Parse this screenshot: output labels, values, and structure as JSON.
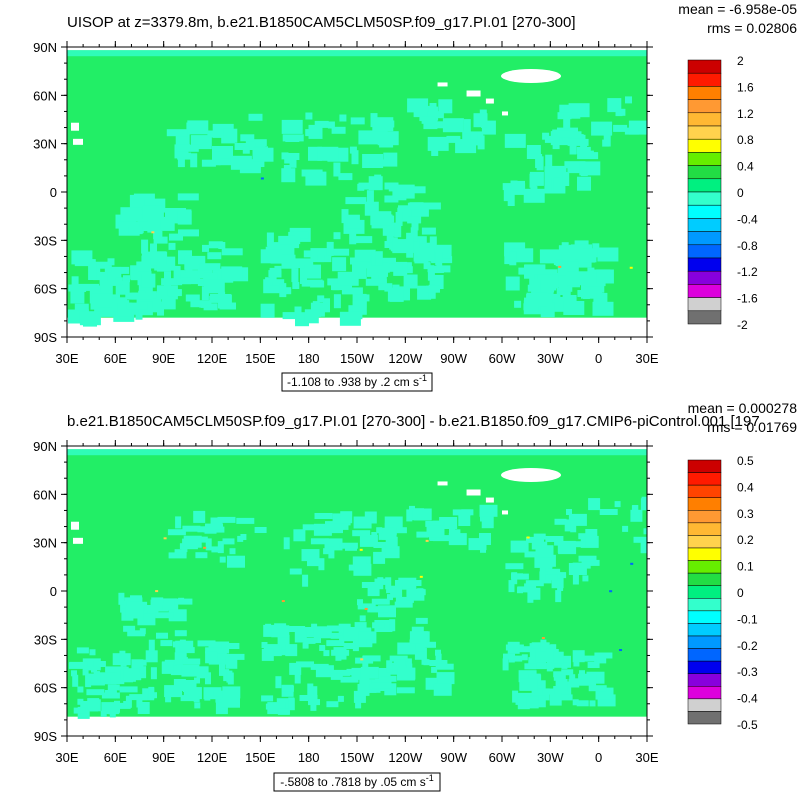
{
  "chart_data": [
    {
      "type": "heatmap",
      "title": "UISOP at z=3379.8m, b.e21.B1850CAM5CLM50SP.f09_g17.PI.01 [270-300]",
      "stats": {
        "mean": "mean = -6.958e-05",
        "rms": "rms = 0.02806"
      },
      "xticks": [
        "30E",
        "60E",
        "90E",
        "120E",
        "150E",
        "180",
        "150W",
        "120W",
        "90W",
        "60W",
        "30W",
        "0",
        "30E"
      ],
      "yticks": [
        "90N",
        "60N",
        "30N",
        "0",
        "30S",
        "60S",
        "90S"
      ],
      "xlim": [
        30,
        390
      ],
      "ylim": [
        -90,
        90
      ],
      "range_note": "-1.108 to .938 by .2 cm s",
      "range_unit_exp": "-1",
      "colorbar_labels": [
        "2",
        "1.6",
        "1.2",
        "0.8",
        "0.4",
        "0",
        "-0.4",
        "-0.8",
        "-1.2",
        "-1.6",
        "-2"
      ],
      "colorbar_colors": [
        "#cc0000",
        "#ff1a00",
        "#ff7f00",
        "#ff9933",
        "#ffb833",
        "#ffd24d",
        "#ffff00",
        "#66ee00",
        "#22dd44",
        "#00f080",
        "#33ffcc",
        "#00ffff",
        "#00ccff",
        "#0099ff",
        "#0066ff",
        "#0000ee",
        "#8800dd",
        "#dd00dd",
        "#d0d0d0",
        "#707070"
      ],
      "dominant_color": "#22ee66",
      "secondary_color": "#33ffcc"
    },
    {
      "type": "heatmap",
      "title": "b.e21.B1850CAM5CLM50SP.f09_g17.PI.01 [270-300] - b.e21.B1850.f09_g17.CMIP6-piControl.001 [197",
      "stats": {
        "mean": "mean = 0.000278",
        "rms": "rms = 0.01769"
      },
      "xticks": [
        "30E",
        "60E",
        "90E",
        "120E",
        "150E",
        "180",
        "150W",
        "120W",
        "90W",
        "60W",
        "30W",
        "0",
        "30E"
      ],
      "yticks": [
        "90N",
        "60N",
        "30N",
        "0",
        "30S",
        "60S",
        "90S"
      ],
      "xlim": [
        30,
        390
      ],
      "ylim": [
        -90,
        90
      ],
      "range_note": "-.5808 to .7818 by .05 cm s",
      "range_unit_exp": "-1",
      "colorbar_labels": [
        "0.5",
        "0.4",
        "0.3",
        "0.2",
        "0.1",
        "0",
        "-0.1",
        "-0.2",
        "-0.3",
        "-0.4",
        "-0.5"
      ],
      "colorbar_colors": [
        "#cc0000",
        "#ff1a00",
        "#ff4400",
        "#ff7f00",
        "#ff9933",
        "#ffb833",
        "#ffd24d",
        "#ffff00",
        "#66ee00",
        "#22dd44",
        "#00f080",
        "#33ffcc",
        "#00ffff",
        "#00ccff",
        "#0099ff",
        "#0066ff",
        "#0000ee",
        "#8800dd",
        "#dd00dd",
        "#d0d0d0",
        "#707070"
      ],
      "dominant_color": "#22ee66",
      "secondary_color": "#33ffcc"
    }
  ]
}
